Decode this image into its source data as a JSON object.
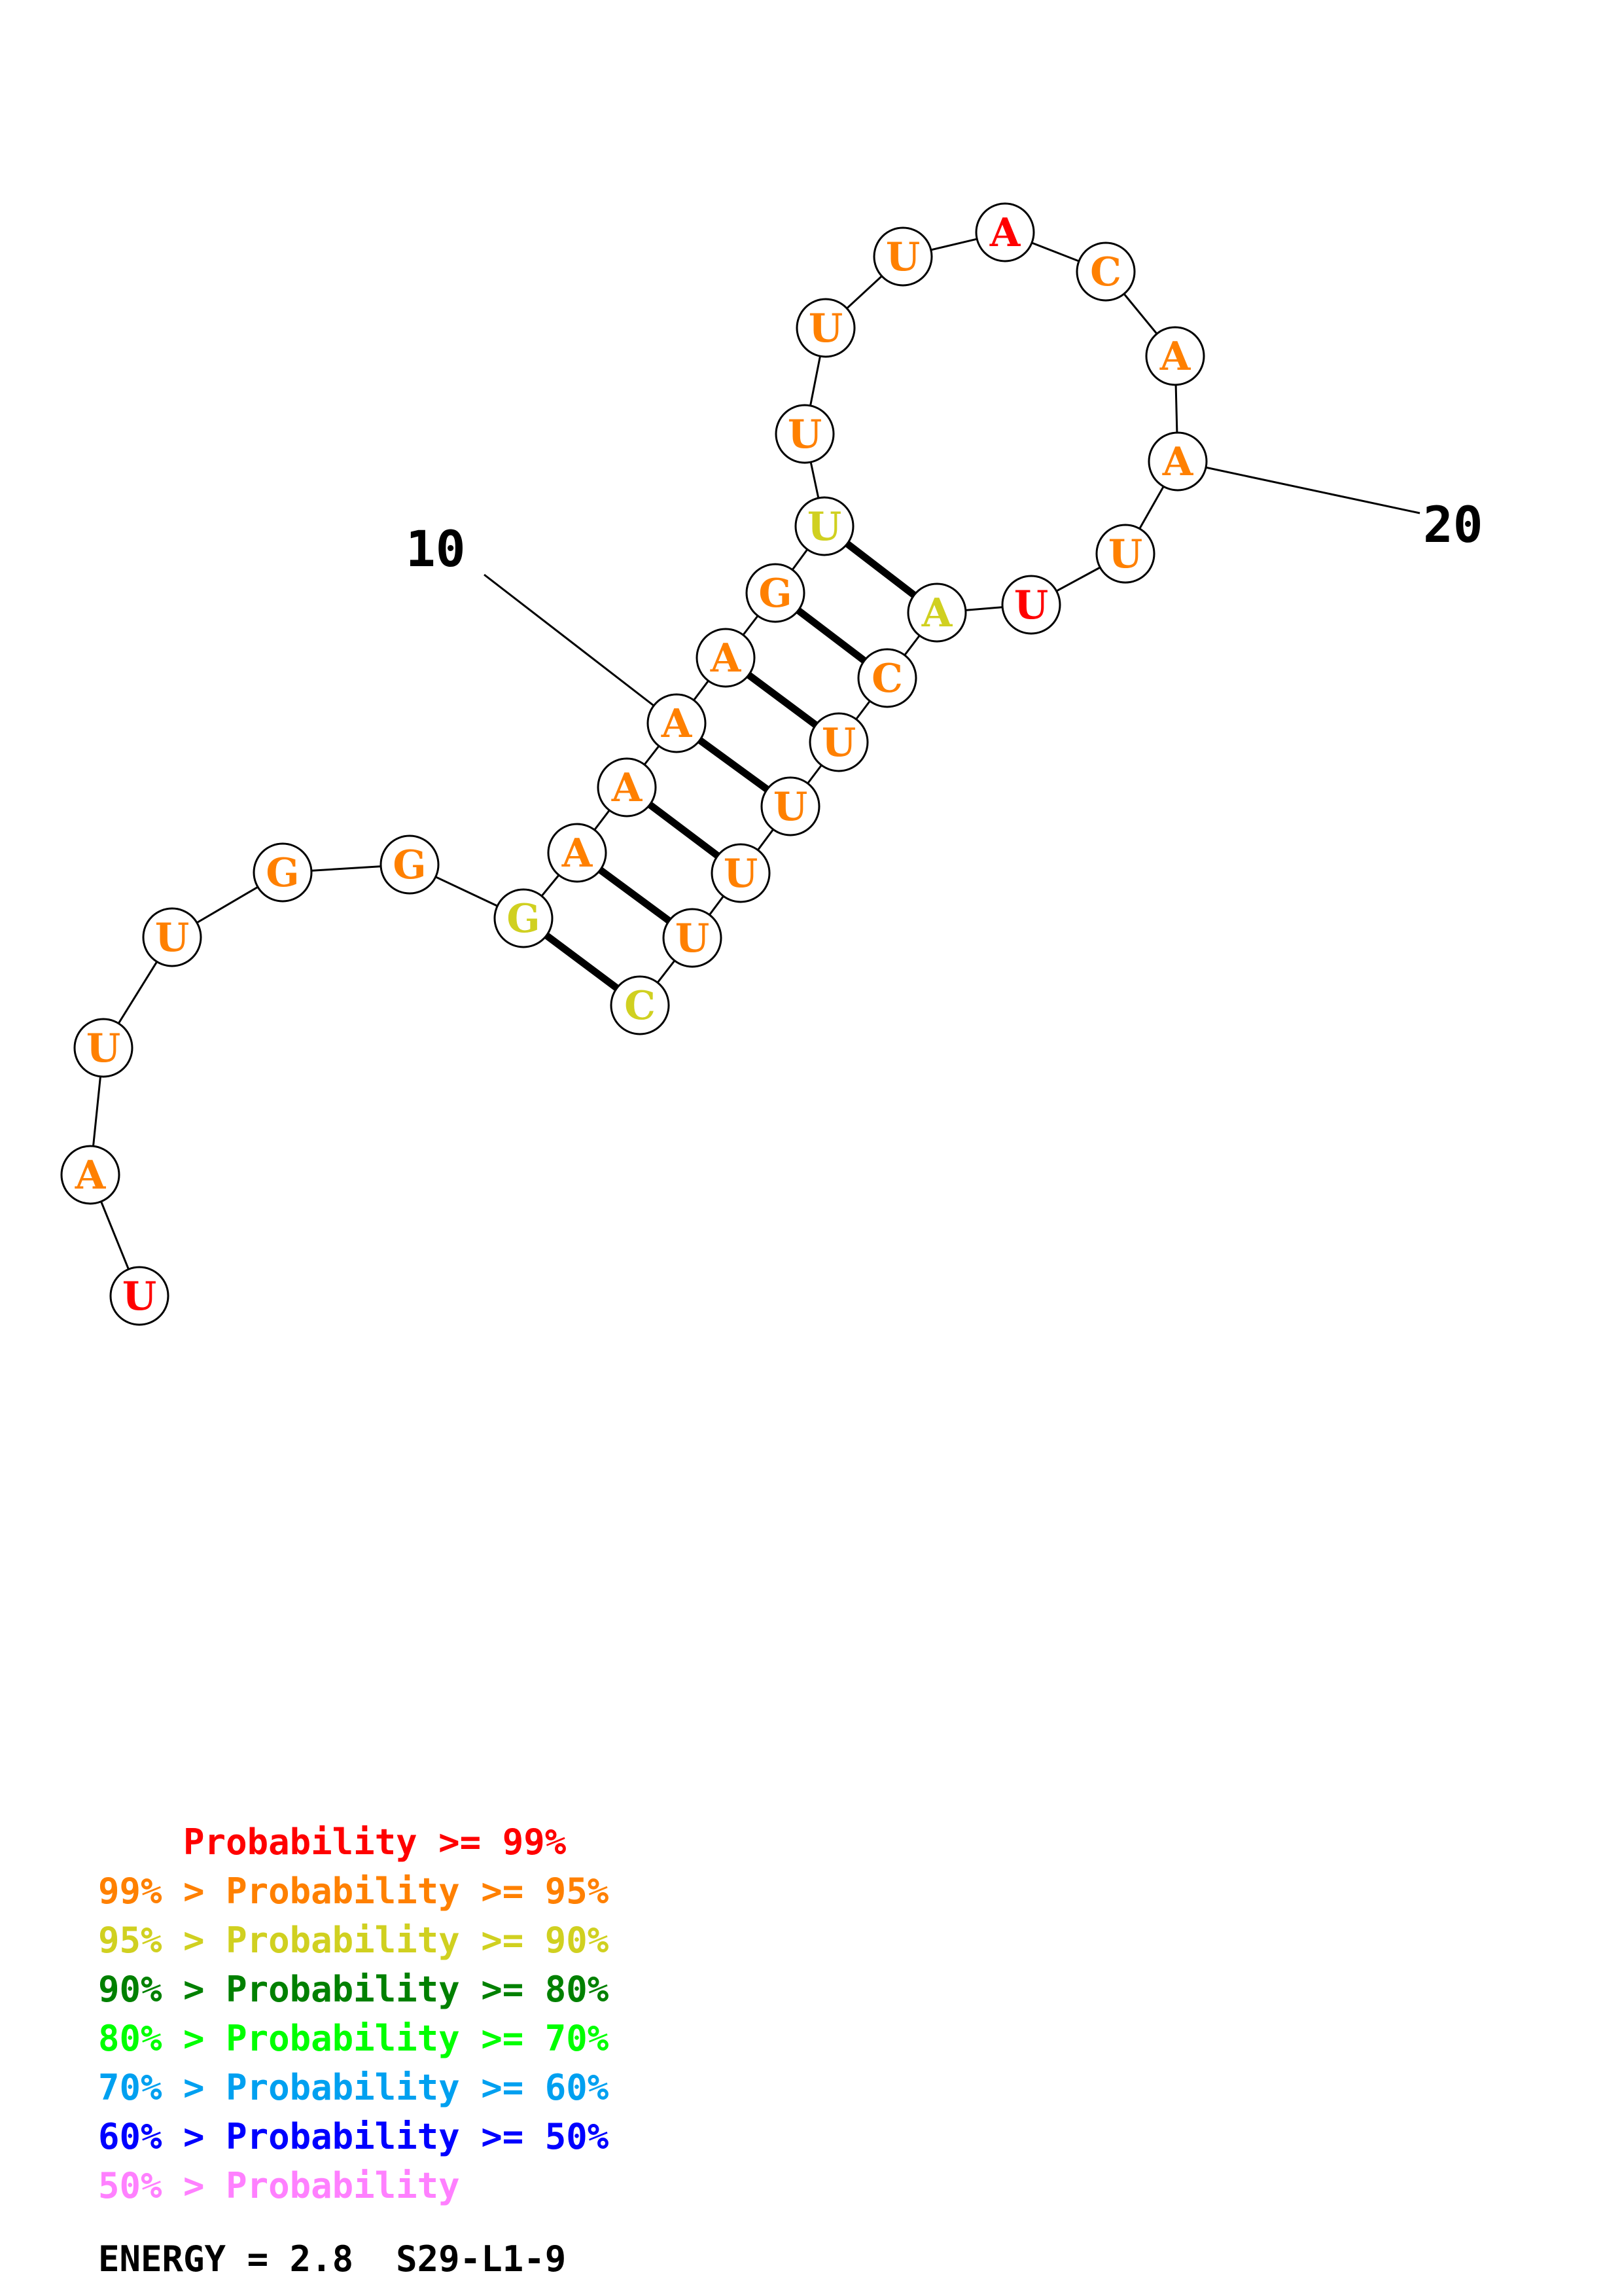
{
  "colors": {
    "p99": "#ff0000",
    "p95": "#ff8000",
    "p90": "#d0d020",
    "p80": "#008000",
    "p70": "#00ff00",
    "p60": "#00a0f0",
    "p50": "#0000ff",
    "plow": "#ff80ff"
  },
  "nucleotides": [
    {
      "index": 1,
      "base": "U",
      "prob_class": "p99"
    },
    {
      "index": 2,
      "base": "A",
      "prob_class": "p95"
    },
    {
      "index": 3,
      "base": "U",
      "prob_class": "p95"
    },
    {
      "index": 4,
      "base": "U",
      "prob_class": "p95"
    },
    {
      "index": 5,
      "base": "G",
      "prob_class": "p95"
    },
    {
      "index": 6,
      "base": "G",
      "prob_class": "p95"
    },
    {
      "index": 7,
      "base": "G",
      "prob_class": "p90"
    },
    {
      "index": 8,
      "base": "A",
      "prob_class": "p95"
    },
    {
      "index": 9,
      "base": "A",
      "prob_class": "p95"
    },
    {
      "index": 10,
      "base": "A",
      "prob_class": "p95"
    },
    {
      "index": 11,
      "base": "A",
      "prob_class": "p95"
    },
    {
      "index": 12,
      "base": "G",
      "prob_class": "p95"
    },
    {
      "index": 13,
      "base": "U",
      "prob_class": "p90"
    },
    {
      "index": 14,
      "base": "U",
      "prob_class": "p95"
    },
    {
      "index": 15,
      "base": "U",
      "prob_class": "p95"
    },
    {
      "index": 16,
      "base": "U",
      "prob_class": "p95"
    },
    {
      "index": 17,
      "base": "A",
      "prob_class": "p99"
    },
    {
      "index": 18,
      "base": "C",
      "prob_class": "p95"
    },
    {
      "index": 19,
      "base": "A",
      "prob_class": "p95"
    },
    {
      "index": 20,
      "base": "A",
      "prob_class": "p95"
    },
    {
      "index": 21,
      "base": "U",
      "prob_class": "p95"
    },
    {
      "index": 22,
      "base": "U",
      "prob_class": "p99"
    },
    {
      "index": 23,
      "base": "A",
      "prob_class": "p90"
    },
    {
      "index": 24,
      "base": "C",
      "prob_class": "p95"
    },
    {
      "index": 25,
      "base": "U",
      "prob_class": "p95"
    },
    {
      "index": 26,
      "base": "U",
      "prob_class": "p95"
    },
    {
      "index": 27,
      "base": "U",
      "prob_class": "p95"
    },
    {
      "index": 28,
      "base": "U",
      "prob_class": "p95"
    },
    {
      "index": 29,
      "base": "C",
      "prob_class": "p90"
    }
  ],
  "base_pairs": [
    [
      7,
      29
    ],
    [
      8,
      28
    ],
    [
      9,
      27
    ],
    [
      10,
      26
    ],
    [
      11,
      25
    ],
    [
      12,
      24
    ],
    [
      13,
      23
    ]
  ],
  "position_labels": [
    {
      "index": 10,
      "text": "10"
    },
    {
      "index": 20,
      "text": "20"
    }
  ],
  "legend": [
    {
      "prefix": "    ",
      "text": "    Probability >= 99%",
      "color_key": "p99"
    },
    {
      "prefix": "99% > ",
      "text": "99% > Probability >= 95%",
      "color_key": "p95"
    },
    {
      "prefix": "95% > ",
      "text": "95% > Probability >= 90%",
      "color_key": "p90"
    },
    {
      "prefix": "90% > ",
      "text": "90% > Probability >= 80%",
      "color_key": "p80"
    },
    {
      "prefix": "80% > ",
      "text": "80% > Probability >= 70%",
      "color_key": "p70"
    },
    {
      "prefix": "70% > ",
      "text": "70% > Probability >= 60%",
      "color_key": "p60"
    },
    {
      "prefix": "60% > ",
      "text": "60% > Probability >= 50%",
      "color_key": "p50"
    },
    {
      "prefix": "50% > ",
      "text": "50% > Probability",
      "color_key": "plow"
    }
  ],
  "footer": {
    "energy": "ENERGY = 2.8  S29-L1-9"
  }
}
